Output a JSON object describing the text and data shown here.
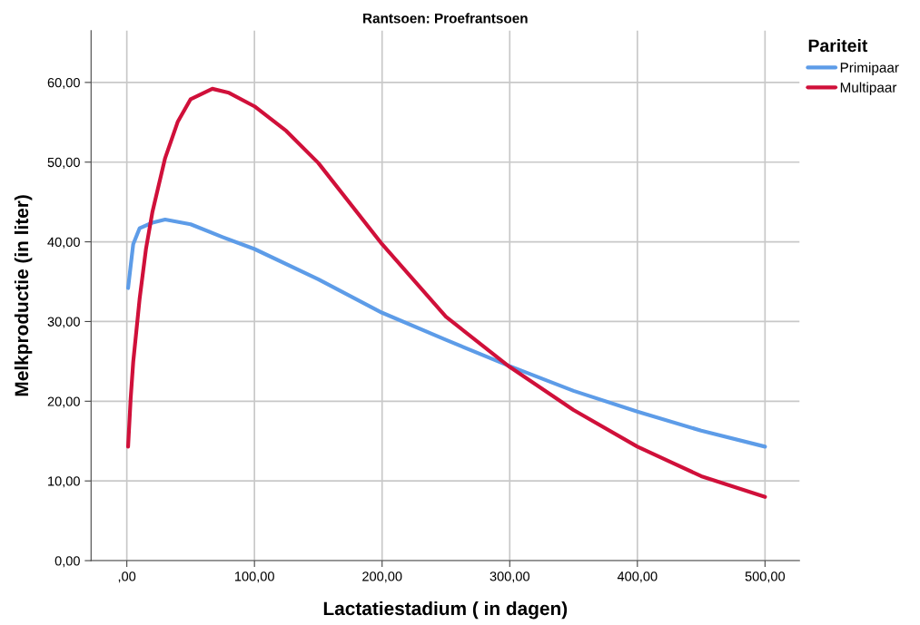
{
  "chart_data": {
    "type": "line",
    "title": "Rantsoen: Proefrantsoen",
    "xlabel": "Lactatiestadium ( in dagen)",
    "ylabel": "Melkproductie (in liter)",
    "legend_title": "Pariteit",
    "legend": "right",
    "grid": true,
    "marker": "none",
    "line_style": "solid",
    "xlim": [
      -28,
      527
    ],
    "ylim": [
      0,
      66.5
    ],
    "xticks": [
      {
        "value": 0,
        "label": ",00"
      },
      {
        "value": 100,
        "label": "100,00"
      },
      {
        "value": 200,
        "label": "200,00"
      },
      {
        "value": 300,
        "label": "300,00"
      },
      {
        "value": 400,
        "label": "400,00"
      },
      {
        "value": 500,
        "label": "500,00"
      }
    ],
    "yticks": [
      {
        "value": 0,
        "label": "0,00"
      },
      {
        "value": 10,
        "label": "10,00"
      },
      {
        "value": 20,
        "label": "20,00"
      },
      {
        "value": 30,
        "label": "30,00"
      },
      {
        "value": 40,
        "label": "40,00"
      },
      {
        "value": 50,
        "label": "50,00"
      },
      {
        "value": 60,
        "label": "60,00"
      }
    ],
    "series": [
      {
        "name": "Primipaar",
        "color": "#5d9ce8",
        "x": [
          1,
          5,
          10,
          20,
          30,
          50,
          75,
          100,
          150,
          200,
          250,
          300,
          350,
          400,
          450,
          500
        ],
        "values": [
          34.2,
          39.7,
          41.7,
          42.4,
          42.8,
          42.2,
          40.6,
          39.1,
          35.3,
          31.1,
          27.7,
          24.4,
          21.3,
          18.7,
          16.3,
          14.3
        ]
      },
      {
        "name": "Multipaar",
        "color": "#d0103a",
        "x": [
          1,
          3,
          5,
          10,
          15,
          20,
          30,
          40,
          50,
          67,
          80,
          100,
          125,
          150,
          200,
          250,
          300,
          350,
          400,
          450,
          500
        ],
        "values": [
          14.3,
          20.3,
          24.9,
          32.8,
          39.1,
          43.7,
          50.5,
          55.1,
          57.9,
          59.2,
          58.7,
          57.0,
          53.9,
          49.9,
          39.7,
          30.6,
          24.3,
          18.9,
          14.3,
          10.6,
          8.0
        ]
      }
    ]
  }
}
